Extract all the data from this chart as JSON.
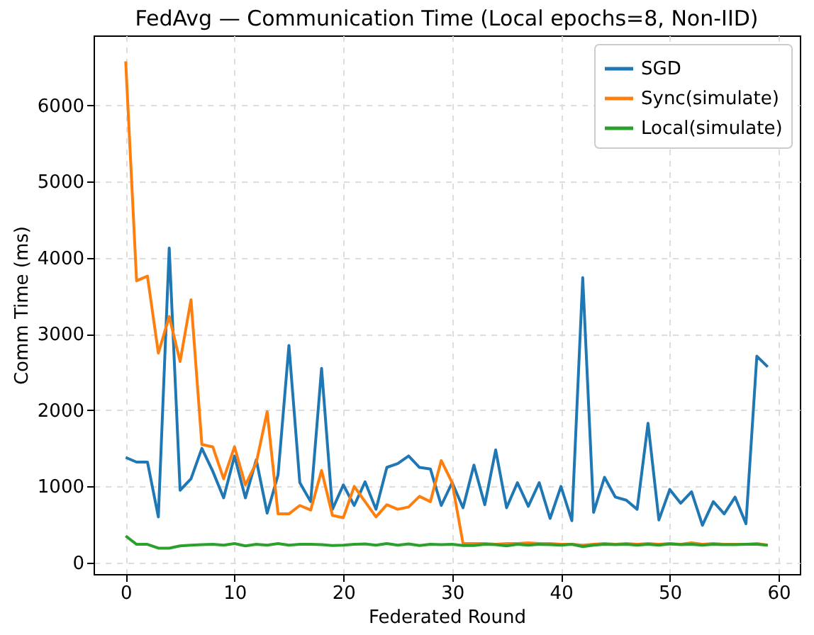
{
  "chart_data": {
    "type": "line",
    "title": "FedAvg — Communication Time (Local epochs=8, Non-IID)",
    "xlabel": "Federated Round",
    "ylabel": "Comm Time (ms)",
    "x": [
      0,
      1,
      2,
      3,
      4,
      5,
      6,
      7,
      8,
      9,
      10,
      11,
      12,
      13,
      14,
      15,
      16,
      17,
      18,
      19,
      20,
      21,
      22,
      23,
      24,
      25,
      26,
      27,
      28,
      29,
      30,
      31,
      32,
      33,
      34,
      35,
      36,
      37,
      38,
      39,
      40,
      41,
      42,
      43,
      44,
      45,
      46,
      47,
      48,
      49,
      50,
      51,
      52,
      53,
      54,
      55,
      56,
      57,
      58,
      59
    ],
    "series": [
      {
        "name": "SGD",
        "color": "#1f77b4",
        "values": [
          1380,
          1320,
          1320,
          600,
          4130,
          950,
          1100,
          1500,
          1200,
          850,
          1400,
          850,
          1350,
          650,
          1150,
          2850,
          1050,
          800,
          2550,
          700,
          1020,
          750,
          1060,
          700,
          1250,
          1300,
          1400,
          1250,
          1230,
          750,
          1050,
          720,
          1280,
          760,
          1480,
          720,
          1050,
          740,
          1050,
          580,
          1000,
          550,
          3740,
          660,
          1120,
          860,
          820,
          700,
          1830,
          560,
          960,
          780,
          930,
          490,
          800,
          640,
          860,
          510,
          2710,
          2570
        ]
      },
      {
        "name": "Sync(simulate)",
        "color": "#ff7f0e",
        "values": [
          6580,
          3700,
          3760,
          2750,
          3230,
          2640,
          3450,
          1550,
          1520,
          1100,
          1520,
          1020,
          1310,
          1980,
          640,
          640,
          750,
          690,
          1210,
          620,
          590,
          1000,
          800,
          600,
          760,
          700,
          730,
          870,
          800,
          1340,
          1050,
          250,
          250,
          250,
          240,
          250,
          250,
          260,
          250,
          250,
          240,
          240,
          230,
          240,
          250,
          240,
          250,
          240,
          250,
          240,
          250,
          240,
          260,
          240,
          250,
          240,
          240,
          240,
          250,
          230
        ]
      },
      {
        "name": "Local(simulate)",
        "color": "#2ca02c",
        "values": [
          350,
          240,
          240,
          190,
          190,
          220,
          230,
          235,
          240,
          230,
          250,
          220,
          240,
          230,
          250,
          230,
          240,
          240,
          235,
          225,
          230,
          240,
          245,
          230,
          250,
          230,
          245,
          225,
          240,
          235,
          240,
          225,
          225,
          240,
          235,
          220,
          240,
          230,
          240,
          235,
          230,
          240,
          210,
          230,
          240,
          235,
          240,
          230,
          240,
          230,
          245,
          235,
          240,
          230,
          240,
          235,
          235,
          240,
          240,
          230
        ]
      }
    ],
    "xlim": [
      -2.95,
      61.95
    ],
    "xticks": [
      0,
      10,
      20,
      30,
      40,
      50,
      60
    ],
    "ylim": [
      -150,
      6920
    ],
    "yticks": [
      0,
      1000,
      2000,
      3000,
      4000,
      5000,
      6000
    ],
    "grid": true,
    "legend": "top right",
    "line_style": "solid",
    "marker": "none"
  }
}
